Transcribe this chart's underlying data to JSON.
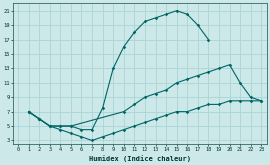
{
  "xlabel": "Humidex (Indice chaleur)",
  "bg_color": "#cce8e8",
  "grid_color": "#aad4d4",
  "line_color": "#006666",
  "xlim": [
    0,
    23
  ],
  "ylim": [
    3,
    22
  ],
  "xticks": [
    0,
    1,
    2,
    3,
    4,
    5,
    6,
    7,
    8,
    9,
    10,
    11,
    12,
    13,
    14,
    15,
    16,
    17,
    18,
    19,
    20,
    21,
    22,
    23
  ],
  "yticks": [
    3,
    5,
    7,
    9,
    11,
    13,
    15,
    17,
    19,
    21
  ],
  "curve1_x": [
    1,
    2,
    3,
    4,
    5,
    6,
    7,
    8,
    9,
    10,
    11,
    12,
    13,
    14,
    15,
    16,
    17,
    18
  ],
  "curve1_y": [
    7,
    6,
    5,
    5,
    5,
    4.5,
    4.5,
    7.5,
    13,
    16,
    18,
    19.5,
    20,
    20.5,
    21,
    20.5,
    19,
    17
  ],
  "curve2_x": [
    1,
    2,
    3,
    4,
    5,
    10,
    11,
    12,
    13,
    14,
    15,
    16,
    17,
    18,
    19,
    20,
    21,
    22,
    23
  ],
  "curve2_y": [
    7,
    6,
    5,
    5,
    5,
    7,
    8,
    9,
    9.5,
    10,
    11,
    11.5,
    12,
    12.5,
    13,
    13.5,
    11,
    9,
    8.5
  ],
  "curve3_x": [
    1,
    2,
    3,
    4,
    5,
    6,
    7,
    8,
    9,
    10,
    11,
    12,
    13,
    14,
    15,
    16,
    17,
    18,
    19,
    20,
    21,
    22,
    23
  ],
  "curve3_y": [
    7,
    6,
    5,
    4.5,
    4,
    3.5,
    3,
    3.5,
    4,
    4.5,
    5,
    5.5,
    6,
    6.5,
    7,
    7,
    7.5,
    8,
    8,
    8.5,
    8.5,
    8.5,
    8.5
  ]
}
